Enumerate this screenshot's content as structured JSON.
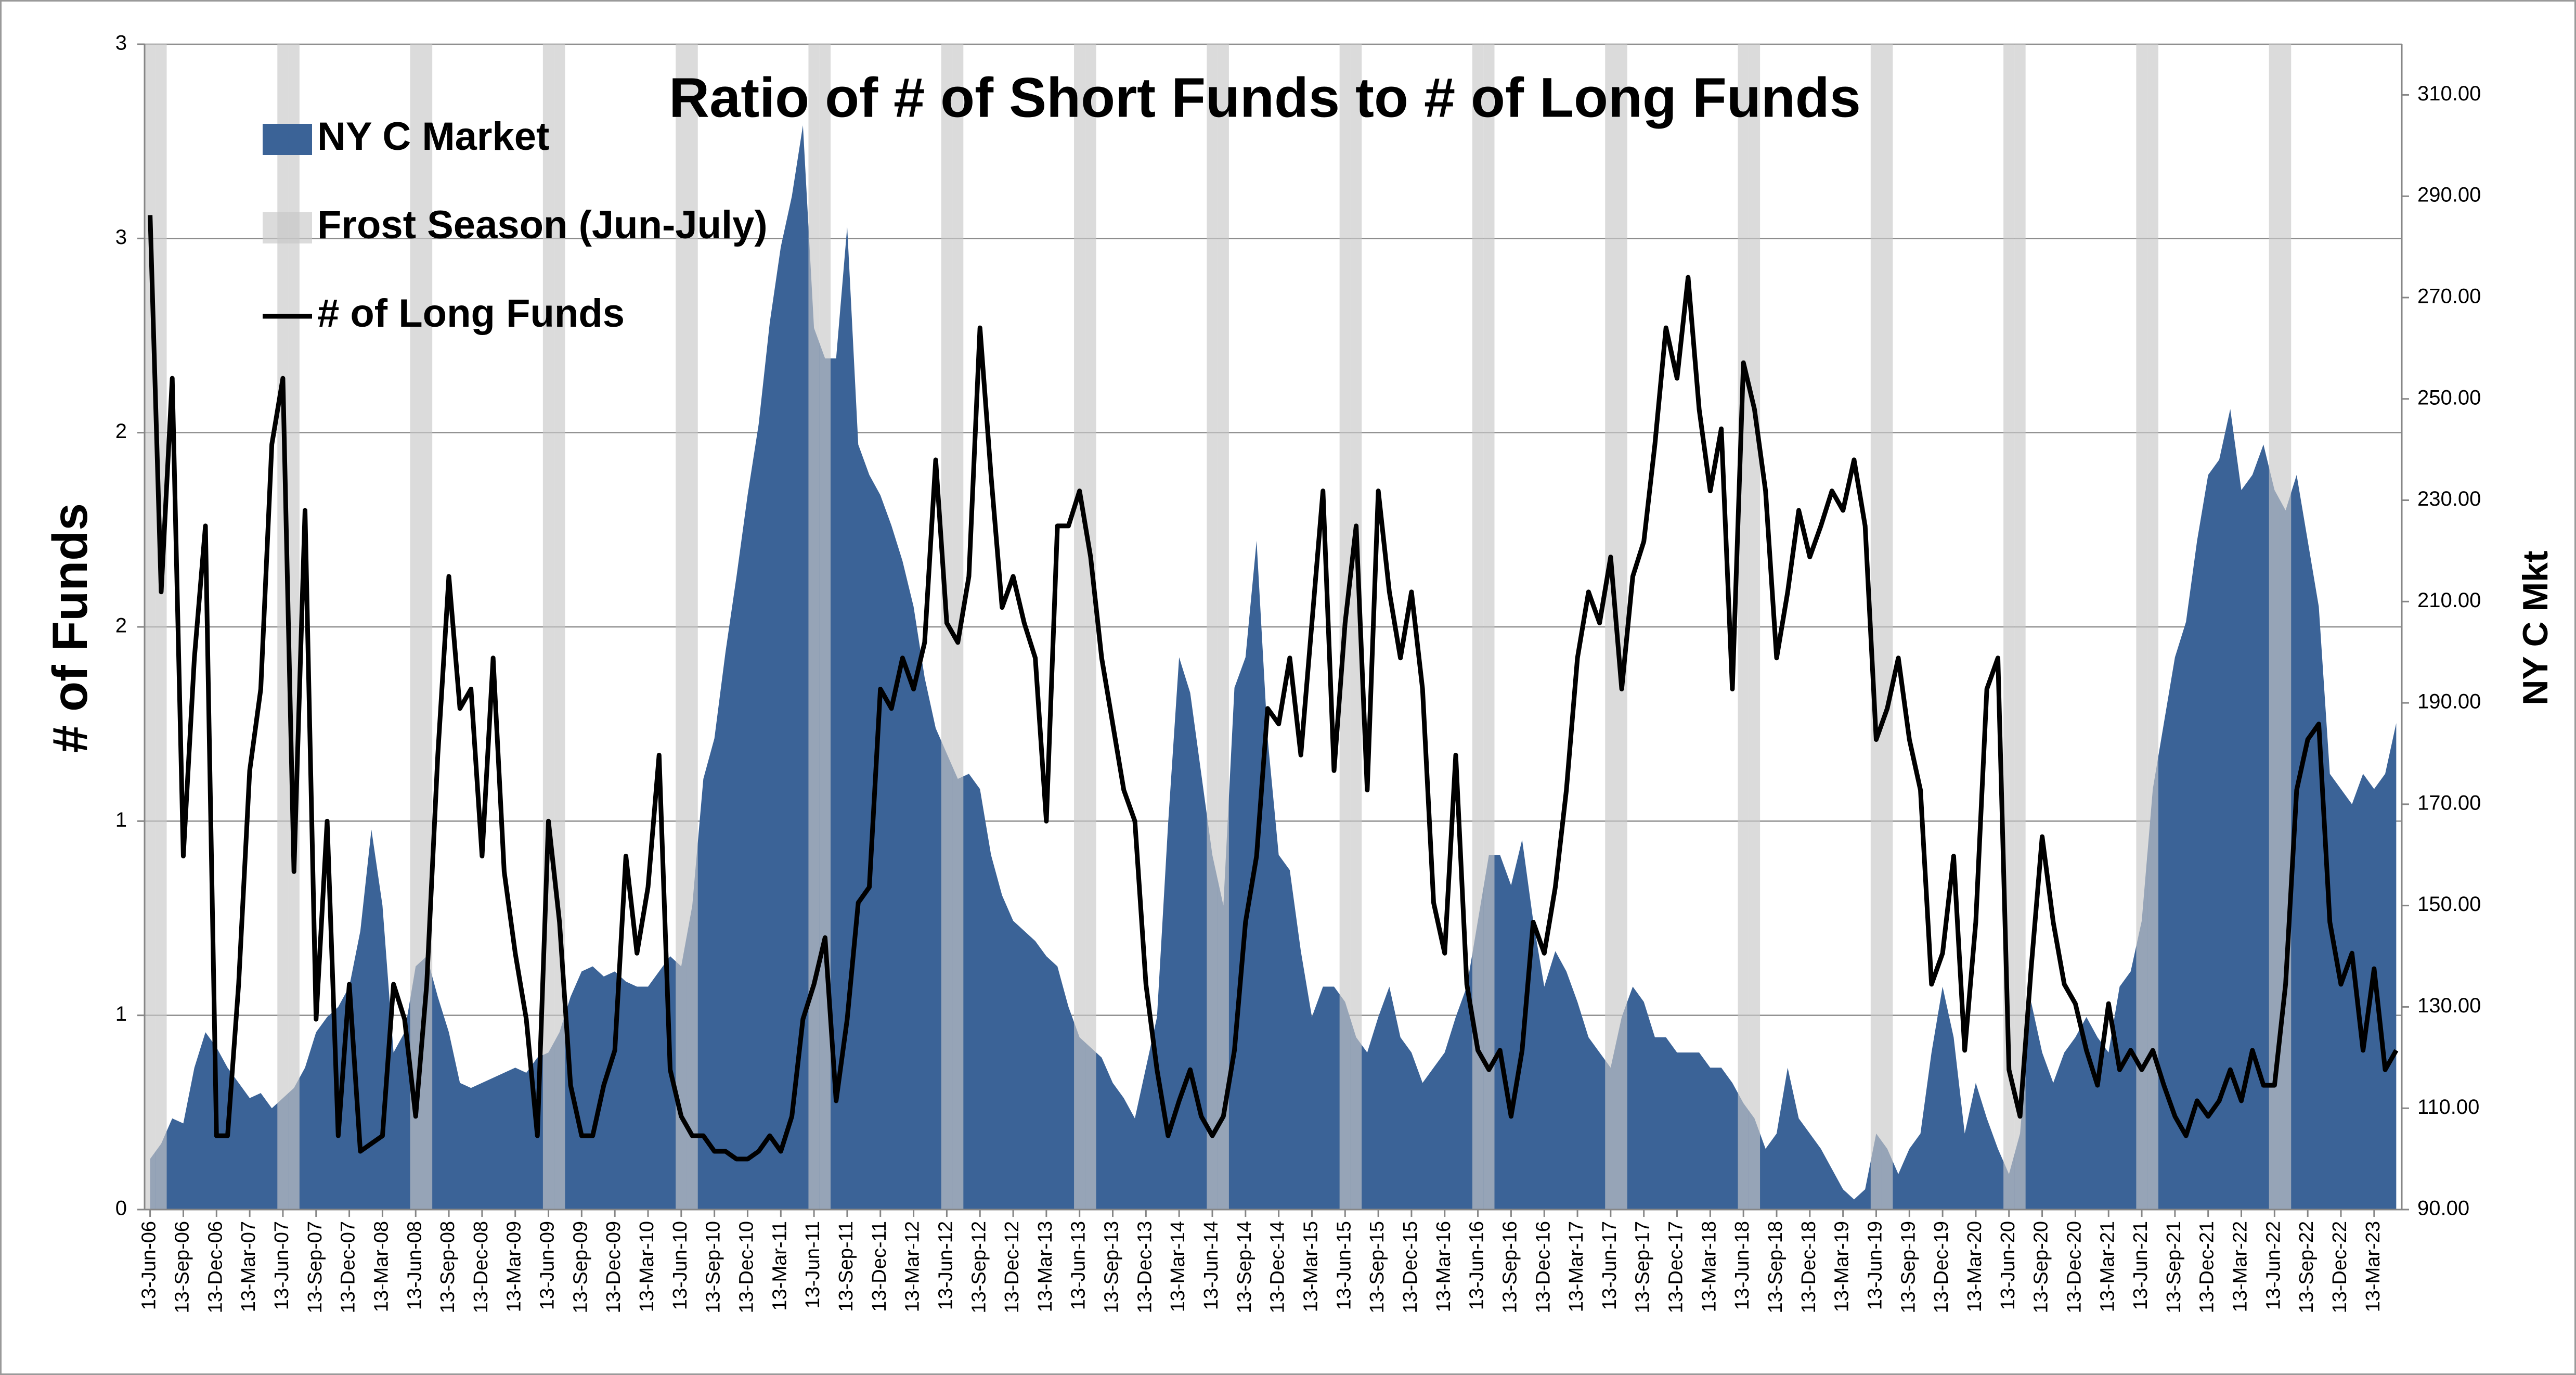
{
  "chart_data": {
    "type": "combo",
    "title": "Ratio of # of Short Funds to # of Long Funds",
    "y_label": "# of Funds",
    "y2_label": "NY C Mkt",
    "legend": "top-left",
    "grid": true,
    "categories": [
      "13-Jun-06",
      null,
      null,
      "13-Sep-06",
      null,
      null,
      "13-Dec-06",
      null,
      null,
      "13-Mar-07",
      null,
      null,
      "13-Jun-07",
      null,
      null,
      "13-Sep-07",
      null,
      null,
      "13-Dec-07",
      null,
      null,
      "13-Mar-08",
      null,
      null,
      "13-Jun-08",
      null,
      null,
      "13-Sep-08",
      null,
      null,
      "13-Dec-08",
      null,
      null,
      "13-Mar-09",
      null,
      null,
      "13-Jun-09",
      null,
      null,
      "13-Sep-09",
      null,
      null,
      "13-Dec-09",
      null,
      null,
      "13-Mar-10",
      null,
      null,
      "13-Jun-10",
      null,
      null,
      "13-Sep-10",
      null,
      null,
      "13-Dec-10",
      null,
      null,
      "13-Mar-11",
      null,
      null,
      "13-Jun-11",
      null,
      null,
      "13-Sep-11",
      null,
      null,
      "13-Dec-11",
      null,
      null,
      "13-Mar-12",
      null,
      null,
      "13-Jun-12",
      null,
      null,
      "13-Sep-12",
      null,
      null,
      "13-Dec-12",
      null,
      null,
      "13-Mar-13",
      null,
      null,
      "13-Jun-13",
      null,
      null,
      "13-Sep-13",
      null,
      null,
      "13-Dec-13",
      null,
      null,
      "13-Mar-14",
      null,
      null,
      "13-Jun-14",
      null,
      null,
      "13-Sep-14",
      null,
      null,
      "13-Dec-14",
      null,
      null,
      "13-Mar-15",
      null,
      null,
      "13-Jun-15",
      null,
      null,
      "13-Sep-15",
      null,
      null,
      "13-Dec-15",
      null,
      null,
      "13-Mar-16",
      null,
      null,
      "13-Jun-16",
      null,
      null,
      "13-Sep-16",
      null,
      null,
      "13-Dec-16",
      null,
      null,
      "13-Mar-17",
      null,
      null,
      "13-Jun-17",
      null,
      null,
      "13-Sep-17",
      null,
      null,
      "13-Dec-17",
      null,
      null,
      "13-Mar-18",
      null,
      null,
      "13-Jun-18",
      null,
      null,
      "13-Sep-18",
      null,
      null,
      "13-Dec-18",
      null,
      null,
      "13-Mar-19",
      null,
      null,
      "13-Jun-19",
      null,
      null,
      "13-Sep-19",
      null,
      null,
      "13-Dec-19",
      null,
      null,
      "13-Mar-20",
      null,
      null,
      "13-Jun-20",
      null,
      null,
      "13-Sep-20",
      null,
      null,
      "13-Dec-20",
      null,
      null,
      "13-Mar-21",
      null,
      null,
      "13-Jun-21",
      null,
      null,
      "13-Sep-21",
      null,
      null,
      "13-Dec-21",
      null,
      null,
      "13-Mar-22",
      null,
      null,
      "13-Jun-22",
      null,
      null,
      "13-Sep-22",
      null,
      null,
      "13-Dec-22",
      null,
      null,
      "13-Mar-23",
      null,
      null
    ],
    "ylim": [
      0,
      3
    ],
    "yticks": [
      0,
      {
        "value": 0.5,
        "label": "1"
      },
      1,
      {
        "value": 1.5,
        "label": "2"
      },
      2,
      {
        "value": 2.5,
        "label": "3"
      },
      3
    ],
    "y2lim": [
      90,
      320
    ],
    "y2ticks": [
      {
        "value": 90,
        "label": "90.00"
      },
      {
        "value": 110,
        "label": "110.00"
      },
      {
        "value": 130,
        "label": "130.00"
      },
      {
        "value": 150,
        "label": "150.00"
      },
      {
        "value": 170,
        "label": "170.00"
      },
      {
        "value": 190,
        "label": "190.00"
      },
      {
        "value": 210,
        "label": "210.00"
      },
      {
        "value": 230,
        "label": "230.00"
      },
      {
        "value": 250,
        "label": "250.00"
      },
      {
        "value": 270,
        "label": "270.00"
      },
      {
        "value": 290,
        "label": "290.00"
      },
      {
        "value": 310,
        "label": "310.00"
      }
    ],
    "series": [
      {
        "name": "NY C Market",
        "type": "area",
        "axis": "y2",
        "color": "#3b6397",
        "values": [
          100,
          103,
          108,
          107,
          118,
          125,
          122,
          118,
          115,
          112,
          113,
          110,
          112,
          114,
          118,
          125,
          128,
          130,
          134,
          145,
          165,
          150,
          121,
          125,
          138,
          140,
          132,
          125,
          115,
          114,
          115,
          116,
          117,
          118,
          117,
          120,
          121,
          125,
          132,
          137,
          138,
          136,
          137,
          135,
          134,
          134,
          137,
          140,
          138,
          150,
          175,
          183,
          200,
          215,
          231,
          245,
          265,
          280,
          290,
          304,
          264,
          258,
          258,
          284,
          241,
          235,
          231,
          225,
          218,
          209,
          195,
          185,
          180,
          175,
          176,
          173,
          160,
          152,
          147,
          145,
          143,
          140,
          138,
          130,
          124,
          122,
          120,
          115,
          112,
          108,
          118,
          128,
          166,
          199,
          192,
          176,
          160,
          150,
          193,
          199,
          222,
          183,
          160,
          157,
          141,
          128,
          134,
          134,
          131,
          124,
          121,
          128,
          134,
          124,
          121,
          115,
          118,
          121,
          128,
          134,
          147,
          160,
          160,
          154,
          163,
          147,
          134,
          141,
          137,
          131,
          124,
          121,
          118,
          128,
          134,
          131,
          124,
          124,
          121,
          121,
          121,
          118,
          118,
          115,
          111,
          108,
          102,
          105,
          118,
          108,
          105,
          102,
          98,
          94,
          92,
          94,
          105,
          102,
          97,
          102,
          105,
          121,
          134,
          124,
          105,
          115,
          108,
          102,
          97,
          105,
          131,
          121,
          115,
          121,
          124,
          128,
          124,
          121,
          134,
          137,
          147,
          173,
          186,
          199,
          206,
          222,
          235,
          238,
          248,
          232,
          235,
          241,
          232,
          228,
          235,
          222,
          209,
          176,
          173,
          170,
          176,
          173,
          176,
          186
        ]
      },
      {
        "name": "Frost Season (Jun-July)",
        "type": "bar",
        "color": "#c8c8c8",
        "values": [
          3,
          3,
          null,
          null,
          null,
          null,
          null,
          null,
          null,
          null,
          null,
          null,
          3,
          3,
          null,
          null,
          null,
          null,
          null,
          null,
          null,
          null,
          null,
          null,
          3,
          3,
          null,
          null,
          null,
          null,
          null,
          null,
          null,
          null,
          null,
          null,
          3,
          3,
          null,
          null,
          null,
          null,
          null,
          null,
          null,
          null,
          null,
          null,
          3,
          3,
          null,
          null,
          null,
          null,
          null,
          null,
          null,
          null,
          null,
          null,
          3,
          3,
          null,
          null,
          null,
          null,
          null,
          null,
          null,
          null,
          null,
          null,
          3,
          3,
          null,
          null,
          null,
          null,
          null,
          null,
          null,
          null,
          null,
          null,
          3,
          3,
          null,
          null,
          null,
          null,
          null,
          null,
          null,
          null,
          null,
          null,
          3,
          3,
          null,
          null,
          null,
          null,
          null,
          null,
          null,
          null,
          null,
          null,
          3,
          3,
          null,
          null,
          null,
          null,
          null,
          null,
          null,
          null,
          null,
          null,
          3,
          3,
          null,
          null,
          null,
          null,
          null,
          null,
          null,
          null,
          null,
          null,
          3,
          3,
          null,
          null,
          null,
          null,
          null,
          null,
          null,
          null,
          null,
          null,
          3,
          3,
          null,
          null,
          null,
          null,
          null,
          null,
          null,
          null,
          null,
          null,
          3,
          3,
          null,
          null,
          null,
          null,
          null,
          null,
          null,
          null,
          null,
          null,
          3,
          3,
          null,
          null,
          null,
          null,
          null,
          null,
          null,
          null,
          null,
          null,
          3,
          3,
          null,
          null,
          null,
          null,
          null,
          null,
          null,
          null,
          null,
          null,
          3,
          3,
          null,
          null,
          null,
          null,
          null,
          null,
          null,
          null,
          null,
          null
        ]
      },
      {
        "name": "# of Long Funds",
        "type": "line",
        "color": "#000000",
        "values": [
          2.56,
          1.59,
          2.14,
          0.91,
          1.42,
          1.76,
          0.19,
          0.19,
          0.58,
          1.13,
          1.34,
          1.97,
          2.14,
          0.87,
          1.8,
          0.49,
          1.0,
          0.19,
          0.58,
          0.15,
          0.17,
          0.19,
          0.58,
          0.49,
          0.24,
          0.58,
          1.17,
          1.63,
          1.29,
          1.34,
          0.91,
          1.42,
          0.87,
          0.66,
          0.49,
          0.19,
          1.0,
          0.74,
          0.32,
          0.19,
          0.19,
          0.32,
          0.41,
          0.91,
          0.66,
          0.83,
          1.17,
          0.36,
          0.24,
          0.19,
          0.19,
          0.15,
          0.15,
          0.13,
          0.13,
          0.15,
          0.19,
          0.15,
          0.24,
          0.49,
          0.58,
          0.7,
          0.28,
          0.49,
          0.79,
          0.83,
          1.34,
          1.29,
          1.42,
          1.34,
          1.46,
          1.93,
          1.51,
          1.46,
          1.63,
          2.27,
          1.89,
          1.55,
          1.63,
          1.51,
          1.42,
          1.0,
          1.76,
          1.76,
          1.85,
          1.68,
          1.42,
          1.25,
          1.08,
          1.0,
          0.58,
          0.36,
          0.19,
          0.28,
          0.36,
          0.24,
          0.19,
          0.24,
          0.41,
          0.74,
          0.91,
          1.29,
          1.25,
          1.42,
          1.17,
          1.51,
          1.85,
          1.13,
          1.51,
          1.76,
          1.08,
          1.85,
          1.59,
          1.42,
          1.59,
          1.34,
          0.79,
          0.66,
          1.17,
          0.58,
          0.41,
          0.36,
          0.41,
          0.24,
          0.41,
          0.74,
          0.66,
          0.83,
          1.08,
          1.42,
          1.59,
          1.51,
          1.68,
          1.34,
          1.63,
          1.72,
          1.97,
          2.27,
          2.14,
          2.4,
          2.06,
          1.85,
          2.01,
          1.34,
          2.18,
          2.06,
          1.85,
          1.42,
          1.59,
          1.8,
          1.68,
          1.76,
          1.85,
          1.8,
          1.93,
          1.76,
          1.21,
          1.29,
          1.42,
          1.21,
          1.08,
          0.58,
          0.66,
          0.91,
          0.41,
          0.74,
          1.34,
          1.42,
          0.36,
          0.24,
          0.62,
          0.96,
          0.74,
          0.58,
          0.53,
          0.41,
          0.32,
          0.53,
          0.36,
          0.41,
          0.36,
          0.41,
          0.32,
          0.24,
          0.19,
          0.28,
          0.24,
          0.28,
          0.36,
          0.28,
          0.41,
          0.32,
          0.32,
          0.58,
          1.08,
          1.21,
          1.25,
          0.74,
          0.58,
          0.66,
          0.41,
          0.62,
          0.36,
          0.41
        ]
      }
    ]
  }
}
